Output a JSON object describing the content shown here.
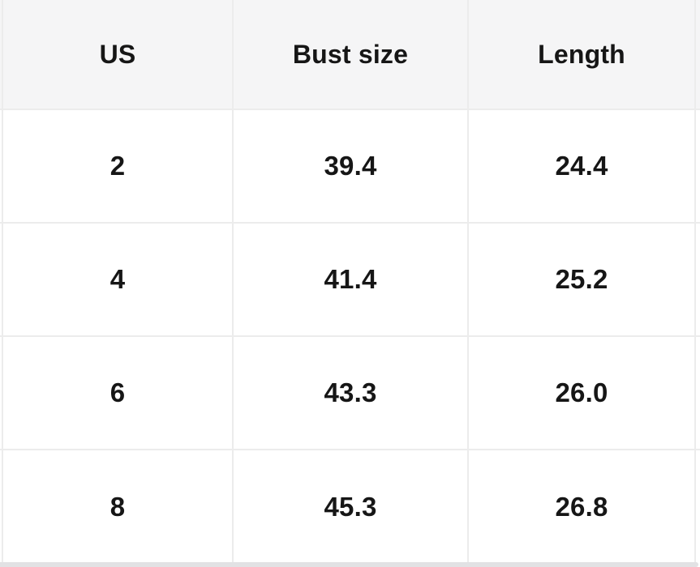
{
  "table": {
    "columns": [
      "US",
      "Bust size",
      "Length"
    ],
    "rows": [
      {
        "cells": [
          "2",
          "39.4",
          "24.4"
        ]
      },
      {
        "cells": [
          "4",
          "41.4",
          "25.2"
        ]
      },
      {
        "cells": [
          "6",
          "43.3",
          "26.0"
        ]
      },
      {
        "cells": [
          "8",
          "45.3",
          "26.8"
        ]
      }
    ]
  },
  "colors": {
    "header_bg": "#f5f5f6",
    "divider": "#ececec",
    "text": "#161616",
    "scrollbar_thumb": "#e2e2e4",
    "body_bg": "#ffffff"
  },
  "scrollbar": {
    "orientation": "horizontal",
    "position": "bottom"
  }
}
